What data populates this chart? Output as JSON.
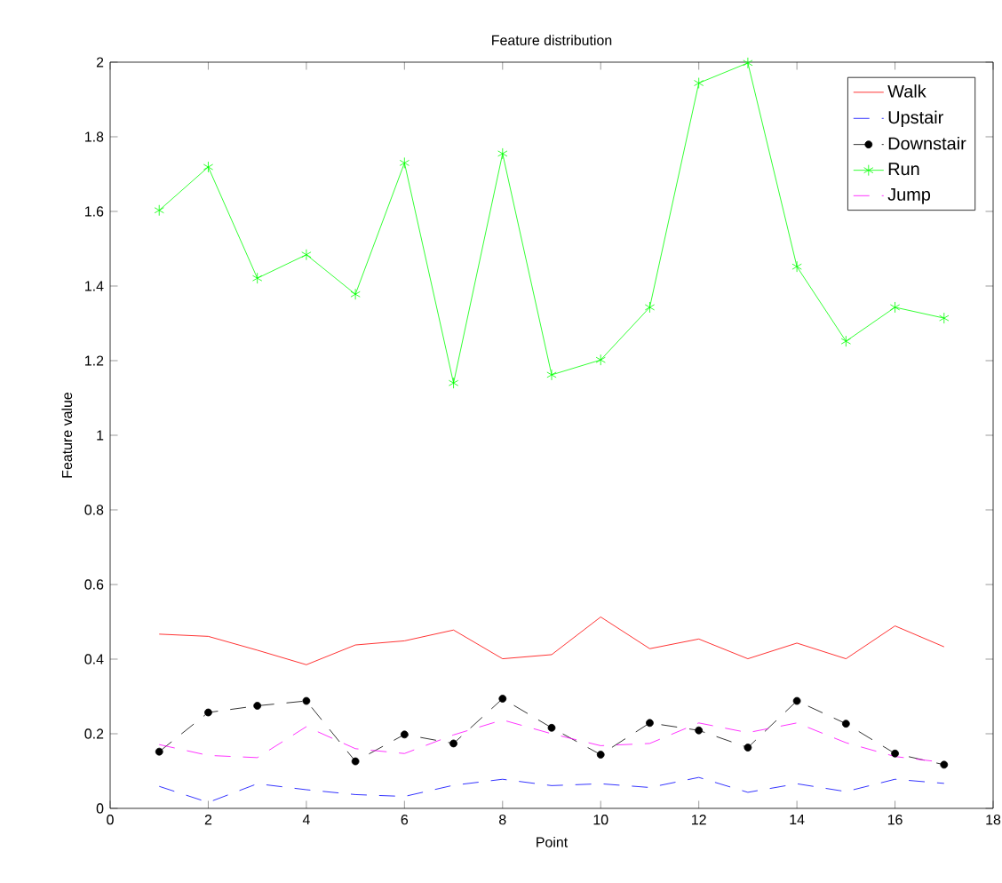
{
  "chart_data": {
    "type": "line",
    "title": "Feature distribution",
    "xlabel": "Point",
    "ylabel": "Feature value",
    "x": [
      1,
      2,
      3,
      4,
      5,
      6,
      7,
      8,
      9,
      10,
      11,
      12,
      13,
      14,
      15,
      16,
      17
    ],
    "series": [
      {
        "name": "Walk",
        "color": "#ff0000",
        "line_style": "solid",
        "marker": "none",
        "values": [
          0.467,
          0.461,
          0.424,
          0.385,
          0.438,
          0.449,
          0.478,
          0.401,
          0.412,
          0.513,
          0.428,
          0.454,
          0.401,
          0.443,
          0.401,
          0.489,
          0.433
        ]
      },
      {
        "name": "Upstair",
        "color": "#0000ff",
        "line_style": "dashed",
        "marker": "none",
        "values": [
          0.059,
          0.016,
          0.066,
          0.05,
          0.037,
          0.032,
          0.062,
          0.078,
          0.061,
          0.066,
          0.056,
          0.083,
          0.043,
          0.066,
          0.045,
          0.078,
          0.067
        ]
      },
      {
        "name": "Downstair",
        "color": "#000000",
        "line_style": "dashed",
        "marker": "circle",
        "values": [
          0.152,
          0.257,
          0.275,
          0.288,
          0.126,
          0.198,
          0.174,
          0.294,
          0.216,
          0.144,
          0.229,
          0.209,
          0.163,
          0.288,
          0.227,
          0.147,
          0.117
        ]
      },
      {
        "name": "Run",
        "color": "#00ff00",
        "line_style": "solid",
        "marker": "cross",
        "values": [
          1.603,
          1.719,
          1.421,
          1.484,
          1.378,
          1.73,
          1.14,
          1.755,
          1.162,
          1.202,
          1.343,
          1.944,
          1.998,
          1.452,
          1.252,
          1.343,
          1.314
        ]
      },
      {
        "name": "Jump",
        "color": "#ff00ff",
        "line_style": "dashed",
        "marker": "none",
        "values": [
          0.171,
          0.142,
          0.136,
          0.219,
          0.16,
          0.147,
          0.197,
          0.237,
          0.2,
          0.168,
          0.174,
          0.229,
          0.203,
          0.229,
          0.176,
          0.139,
          0.123
        ]
      }
    ],
    "xlim": [
      0,
      18
    ],
    "xticks": [
      0,
      2,
      4,
      6,
      8,
      10,
      12,
      14,
      16,
      18
    ],
    "ylim": [
      0,
      2
    ],
    "yticks": [
      0,
      0.2,
      0.4,
      0.6,
      0.8,
      1,
      1.2,
      1.4,
      1.6,
      1.8,
      2
    ],
    "grid": false,
    "legend": "top right"
  }
}
